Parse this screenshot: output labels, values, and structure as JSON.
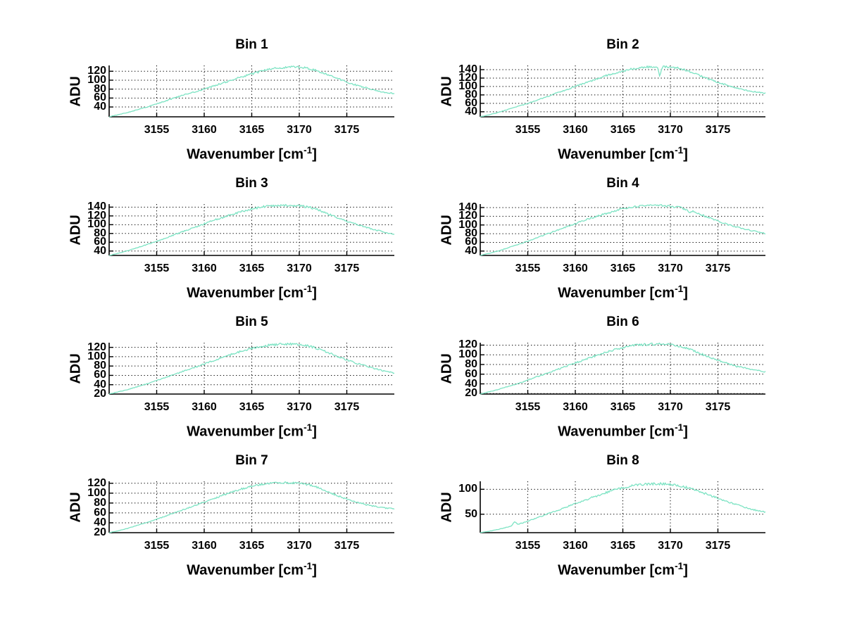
{
  "style": {
    "background": "#ffffff",
    "line_color": "#7ce3c3",
    "axis_color": "#000000",
    "grid_color": "#000000",
    "text_color": "#000000"
  },
  "labels": {
    "xlabel_main": "Wavenumber [cm",
    "xlabel_sup": "-1",
    "xlabel_bracket": "]",
    "ylabel": "ADU"
  },
  "chart_data": [
    {
      "type": "line",
      "title": "Bin 1",
      "xlabel": "Wavenumber [cm-1]",
      "ylabel": "ADU",
      "x_start": 3150,
      "x_step": 1,
      "xlim": [
        3150,
        3180
      ],
      "ylim": [
        18,
        133
      ],
      "grid": true,
      "xticks": [
        3155,
        3160,
        3165,
        3170,
        3175
      ],
      "yticks": [
        40,
        60,
        80,
        100,
        120
      ],
      "values": [
        18,
        23,
        28,
        34,
        40,
        47,
        54,
        61,
        68,
        74,
        80,
        87,
        94,
        101,
        108,
        114,
        120,
        125,
        128,
        130,
        129,
        126,
        120,
        112,
        104,
        96,
        89,
        83,
        77,
        73,
        70
      ],
      "noise_amp": 2.5,
      "spikes": []
    },
    {
      "type": "line",
      "title": "Bin 2",
      "xlabel": "Wavenumber [cm-1]",
      "ylabel": "ADU",
      "x_start": 3150,
      "x_step": 1,
      "xlim": [
        3150,
        3180
      ],
      "ylim": [
        28,
        150
      ],
      "grid": true,
      "xticks": [
        3155,
        3160,
        3165,
        3170,
        3175
      ],
      "yticks": [
        40,
        60,
        80,
        100,
        120,
        140
      ],
      "values": [
        28,
        33,
        39,
        46,
        53,
        60,
        68,
        76,
        84,
        92,
        100,
        108,
        116,
        124,
        131,
        137,
        142,
        145,
        147,
        147,
        146,
        143,
        136,
        127,
        118,
        110,
        103,
        96,
        91,
        87,
        84
      ],
      "noise_amp": 2.5,
      "spikes": [
        {
          "x": 3168.9,
          "amp": -24,
          "width": 0.25
        }
      ]
    },
    {
      "type": "line",
      "title": "Bin 3",
      "xlabel": "Wavenumber [cm-1]",
      "ylabel": "ADU",
      "x_start": 3150,
      "x_step": 1,
      "xlim": [
        3150,
        3180
      ],
      "ylim": [
        30,
        147
      ],
      "grid": true,
      "xticks": [
        3155,
        3160,
        3165,
        3170,
        3175
      ],
      "yticks": [
        40,
        60,
        80,
        100,
        120,
        140
      ],
      "values": [
        30,
        35,
        41,
        48,
        55,
        62,
        70,
        78,
        86,
        94,
        102,
        110,
        117,
        124,
        130,
        136,
        140,
        143,
        144,
        144,
        143,
        140,
        134,
        125,
        116,
        108,
        101,
        94,
        88,
        83,
        78
      ],
      "noise_amp": 2.5,
      "spikes": []
    },
    {
      "type": "line",
      "title": "Bin 4",
      "xlabel": "Wavenumber [cm-1]",
      "ylabel": "ADU",
      "x_start": 3150,
      "x_step": 1,
      "xlim": [
        3150,
        3180
      ],
      "ylim": [
        30,
        148
      ],
      "grid": true,
      "xticks": [
        3155,
        3160,
        3165,
        3170,
        3175
      ],
      "yticks": [
        40,
        60,
        80,
        100,
        120,
        140
      ],
      "values": [
        30,
        35,
        41,
        48,
        55,
        63,
        71,
        79,
        87,
        95,
        103,
        111,
        118,
        125,
        131,
        137,
        141,
        144,
        145,
        145,
        143,
        140,
        134,
        126,
        117,
        109,
        101,
        95,
        90,
        85,
        80
      ],
      "noise_amp": 2.5,
      "spikes": [
        {
          "x": 3172.0,
          "amp": -8,
          "width": 0.3
        }
      ]
    },
    {
      "type": "line",
      "title": "Bin 5",
      "xlabel": "Wavenumber [cm-1]",
      "ylabel": "ADU",
      "x_start": 3150,
      "x_step": 1,
      "xlim": [
        3150,
        3180
      ],
      "ylim": [
        20,
        130
      ],
      "grid": true,
      "xticks": [
        3155,
        3160,
        3165,
        3170,
        3175
      ],
      "yticks": [
        20,
        40,
        60,
        80,
        100,
        120
      ],
      "values": [
        20,
        25,
        30,
        36,
        42,
        49,
        56,
        63,
        70,
        77,
        84,
        92,
        99,
        106,
        112,
        118,
        122,
        125,
        127,
        127,
        126,
        123,
        117,
        109,
        101,
        93,
        86,
        80,
        74,
        69,
        65
      ],
      "noise_amp": 2.5,
      "spikes": []
    },
    {
      "type": "line",
      "title": "Bin 6",
      "xlabel": "Wavenumber [cm-1]",
      "ylabel": "ADU",
      "x_start": 3150,
      "x_step": 1,
      "xlim": [
        3150,
        3180
      ],
      "ylim": [
        19,
        125
      ],
      "grid": true,
      "xticks": [
        3155,
        3160,
        3165,
        3170,
        3175
      ],
      "yticks": [
        20,
        40,
        60,
        80,
        100,
        120
      ],
      "values": [
        19,
        24,
        29,
        35,
        41,
        48,
        55,
        62,
        69,
        76,
        83,
        90,
        97,
        104,
        110,
        115,
        119,
        121,
        122,
        122,
        121,
        118,
        112,
        104,
        96,
        89,
        82,
        76,
        72,
        68,
        65
      ],
      "noise_amp": 2.5,
      "spikes": []
    },
    {
      "type": "line",
      "title": "Bin 7",
      "xlabel": "Wavenumber [cm-1]",
      "ylabel": "ADU",
      "x_start": 3150,
      "x_step": 1,
      "xlim": [
        3150,
        3180
      ],
      "ylim": [
        20,
        124
      ],
      "grid": true,
      "xticks": [
        3155,
        3160,
        3165,
        3170,
        3175
      ],
      "yticks": [
        20,
        40,
        60,
        80,
        100,
        120
      ],
      "values": [
        20,
        24,
        29,
        35,
        41,
        47,
        54,
        61,
        68,
        75,
        82,
        89,
        96,
        103,
        109,
        114,
        118,
        120,
        121,
        121,
        120,
        117,
        111,
        103,
        95,
        88,
        82,
        77,
        73,
        70,
        68
      ],
      "noise_amp": 2.0,
      "spikes": []
    },
    {
      "type": "line",
      "title": "Bin 8",
      "xlabel": "Wavenumber [cm-1]",
      "ylabel": "ADU",
      "x_start": 3150,
      "x_step": 1,
      "xlim": [
        3150,
        3180
      ],
      "ylim": [
        13,
        116
      ],
      "grid": true,
      "xticks": [
        3155,
        3160,
        3165,
        3170,
        3175
      ],
      "yticks": [
        50,
        100
      ],
      "values": [
        13,
        16,
        20,
        25,
        30,
        36,
        43,
        50,
        57,
        64,
        71,
        78,
        85,
        92,
        98,
        103,
        107,
        110,
        111,
        111,
        110,
        107,
        102,
        96,
        89,
        82,
        75,
        69,
        63,
        58,
        54
      ],
      "noise_amp": 2.5,
      "spikes": [
        {
          "x": 3153.6,
          "amp": 7,
          "width": 0.35
        }
      ]
    }
  ]
}
